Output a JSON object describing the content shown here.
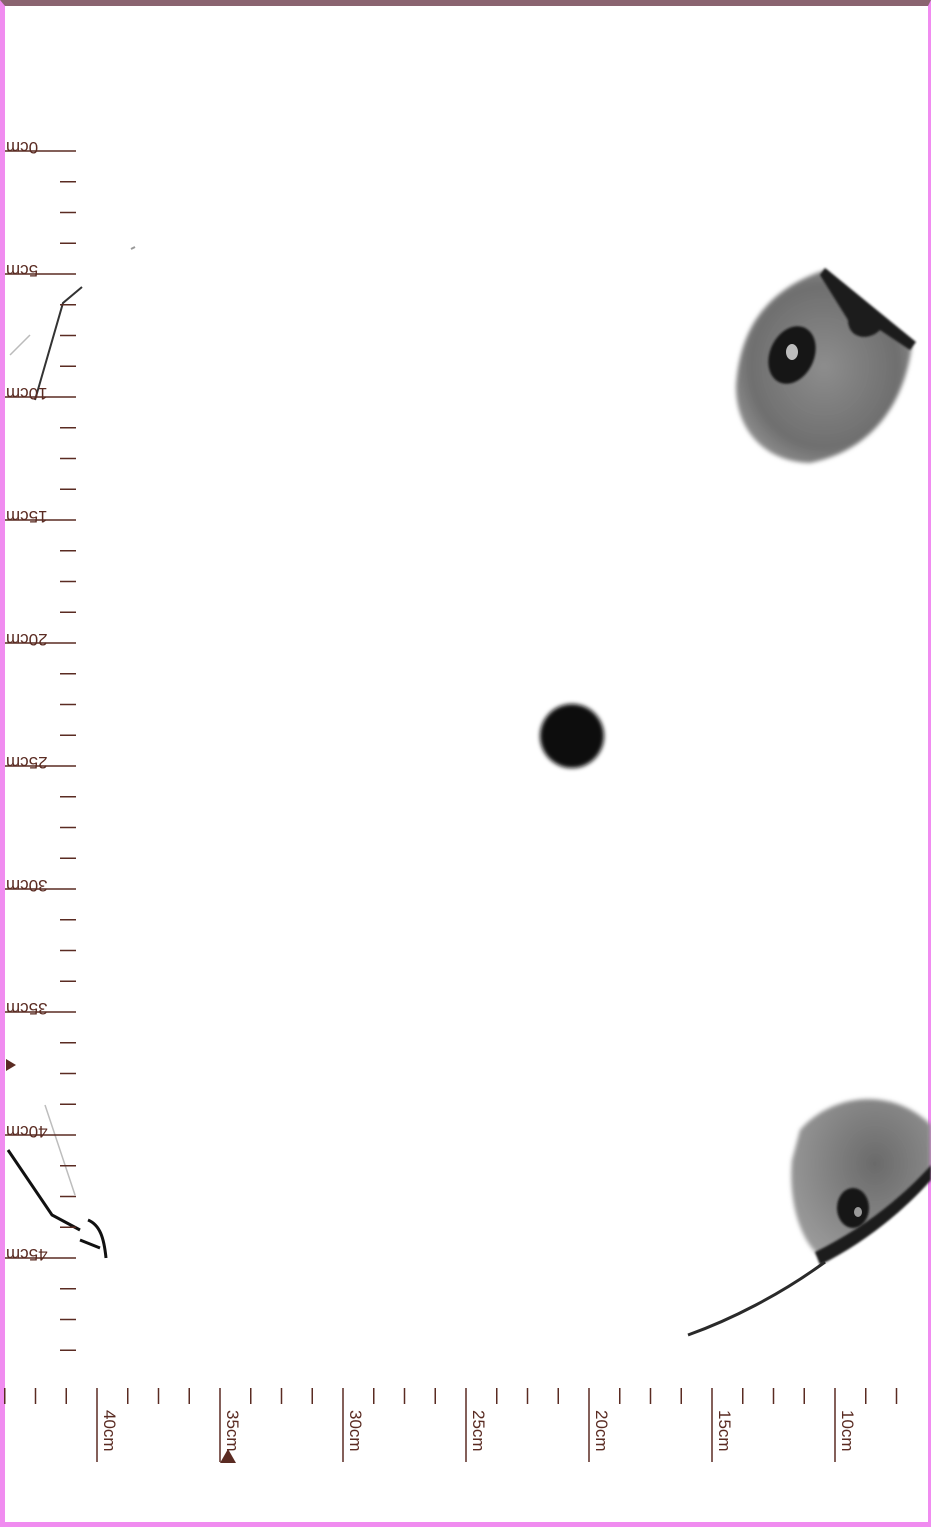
{
  "image": {
    "kind": "ct-slice-with-rulers",
    "colors": {
      "frame": "#f08cf0",
      "frame_top": "#8a6470",
      "ruler": "#5a2b22",
      "tissue": "#777777",
      "dark": "#111111"
    }
  },
  "vertical_ruler": {
    "labels": [
      "0cm",
      "5cm",
      "10cm",
      "15cm",
      "20cm",
      "25cm",
      "30cm",
      "35cm",
      "40cm",
      "45cm"
    ]
  },
  "horizontal_ruler": {
    "labels": [
      "40cm",
      "35cm",
      "30cm",
      "25cm",
      "20cm",
      "15cm",
      "10cm"
    ]
  },
  "icons": {
    "left_marker": "triangle-marker-icon",
    "bottom_marker": "triangle-marker-icon"
  }
}
